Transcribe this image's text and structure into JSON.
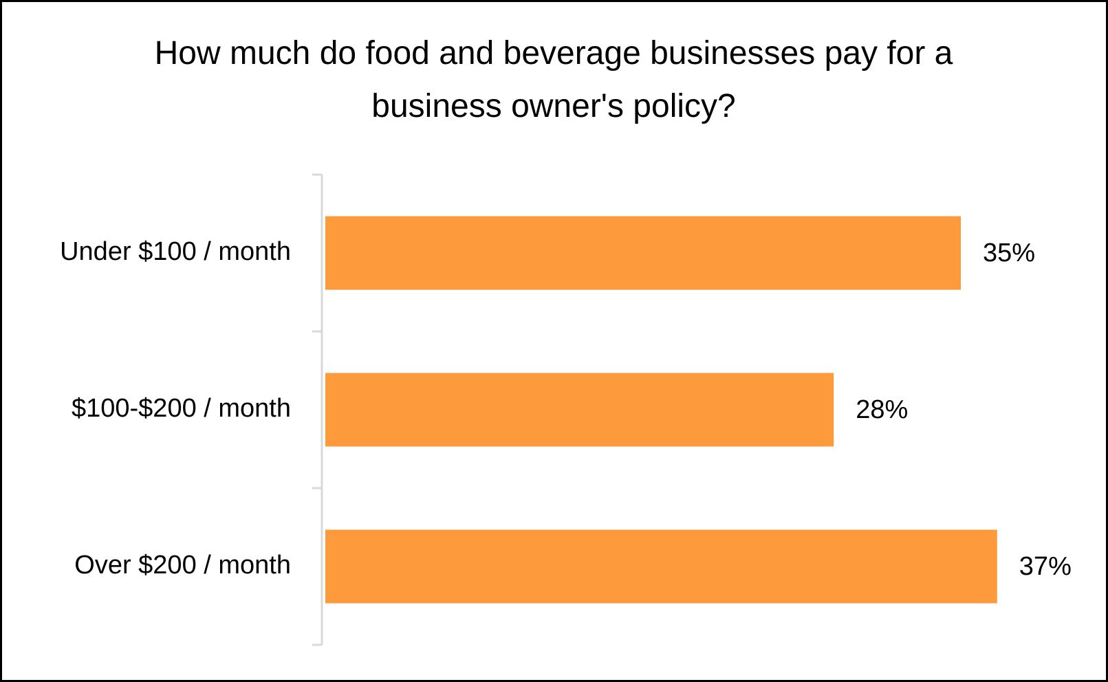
{
  "chart_data": {
    "type": "bar",
    "orientation": "horizontal",
    "title": "How much do food and beverage businesses pay for a business owner's policy?",
    "categories": [
      "Under $100 / month",
      "$100-$200 / month",
      "Over $200 / month"
    ],
    "values": [
      35,
      28,
      37
    ],
    "value_labels": [
      "35%",
      "28%",
      "37%"
    ],
    "color": "#fd9a3c"
  }
}
